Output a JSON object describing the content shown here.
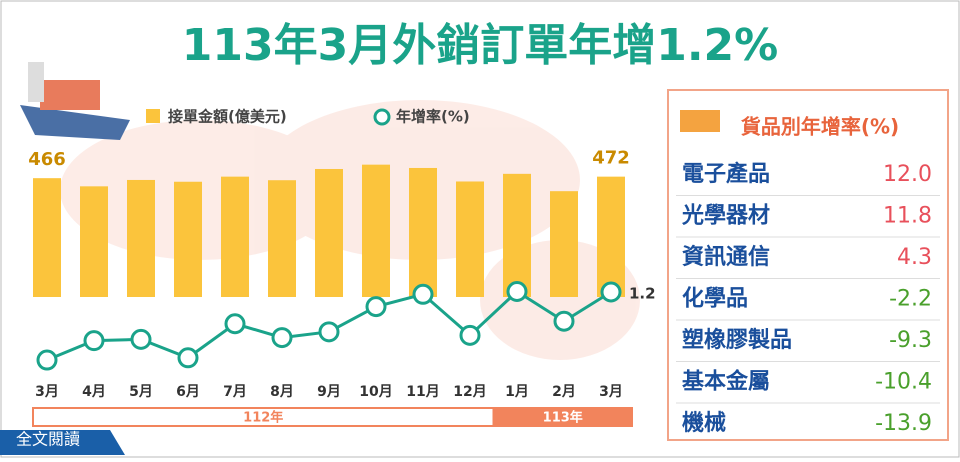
{
  "title": "113年3月外銷訂單年增1.2%",
  "button": "全文閱讀",
  "chart_data": {
    "type": "bar",
    "categories": [
      "3月",
      "4月",
      "5月",
      "6月",
      "7月",
      "8月",
      "9月",
      "10月",
      "11月",
      "12月",
      "1月",
      "2月",
      "3月"
    ],
    "year_groups": [
      {
        "label": "112年",
        "span": 10
      },
      {
        "label": "113年",
        "span": 3
      }
    ],
    "series": [
      {
        "name": "接單金額(億美元)",
        "color": "#fbc43c",
        "values": [
          466,
          434,
          459,
          452,
          472,
          458,
          502,
          519,
          506,
          453,
          483,
          415,
          472
        ]
      },
      {
        "name": "年增率(%)",
        "color": "#1aa38a",
        "axis": "y2",
        "values": [
          -25.8,
          -18.1,
          -17.6,
          -24.9,
          -11.4,
          -16.9,
          -14.6,
          -4.6,
          0.3,
          -16.0,
          1.4,
          -10.4,
          1.2
        ]
      }
    ]
  },
  "table": {
    "title": "貨品別年增率(%)",
    "rows": [
      [
        "電子產品",
        "12.0"
      ],
      [
        "光學器材",
        "11.8"
      ],
      [
        "資訊通信",
        "4.3"
      ],
      [
        "化學品",
        "-2.2"
      ],
      [
        "塑橡膠製品",
        "-9.3"
      ],
      [
        "基本金屬",
        "-10.4"
      ],
      [
        "機械",
        "-13.9"
      ]
    ]
  }
}
